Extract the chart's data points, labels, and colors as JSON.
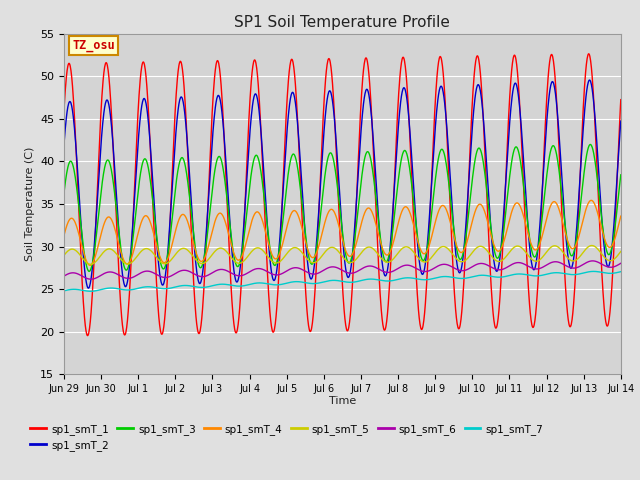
{
  "title": "SP1 Soil Temperature Profile",
  "xlabel": "Time",
  "ylabel": "Soil Temperature (C)",
  "ylim": [
    15,
    55
  ],
  "series_labels": [
    "sp1_smT_1",
    "sp1_smT_2",
    "sp1_smT_3",
    "sp1_smT_4",
    "sp1_smT_5",
    "sp1_smT_6",
    "sp1_smT_7"
  ],
  "series_colors": [
    "#ff0000",
    "#0000cc",
    "#00cc00",
    "#ff8800",
    "#cccc00",
    "#aa00aa",
    "#00cccc"
  ],
  "tz_label": "TZ_osu",
  "tz_bg": "#ffffcc",
  "tz_border": "#cc8800",
  "tz_text_color": "#cc0000",
  "bg_color": "#e0e0e0",
  "plot_bg_color": "#d4d4d4",
  "grid_color": "#ffffff",
  "tick_labels": [
    "Jun 29",
    "Jun 30",
    "Jul 1",
    "Jul 2",
    "Jul 3",
    "Jul 4",
    "Jul 5",
    "Jul 6",
    "Jul 7",
    "Jul 8",
    "Jul 9",
    "Jul 10",
    "Jul 11",
    "Jul 12",
    "Jul 13",
    "Jul 14"
  ],
  "yticks": [
    15,
    20,
    25,
    30,
    35,
    40,
    45,
    50,
    55
  ],
  "series_params": [
    {
      "mean": 35.5,
      "amp": 16.0,
      "phase": 0.72,
      "trend": 0.08
    },
    {
      "mean": 36.0,
      "amp": 11.0,
      "phase": 0.58,
      "trend": 0.18
    },
    {
      "mean": 33.5,
      "amp": 6.5,
      "phase": 0.45,
      "trend": 0.14
    },
    {
      "mean": 30.5,
      "amp": 2.8,
      "phase": 0.3,
      "trend": 0.15
    },
    {
      "mean": 28.8,
      "amp": 0.9,
      "phase": 0.2,
      "trend": 0.03
    },
    {
      "mean": 26.5,
      "amp": 0.4,
      "phase": 0.1,
      "trend": 0.1
    },
    {
      "mean": 24.8,
      "amp": 0.15,
      "phase": 0.05,
      "trend": 0.15
    }
  ]
}
